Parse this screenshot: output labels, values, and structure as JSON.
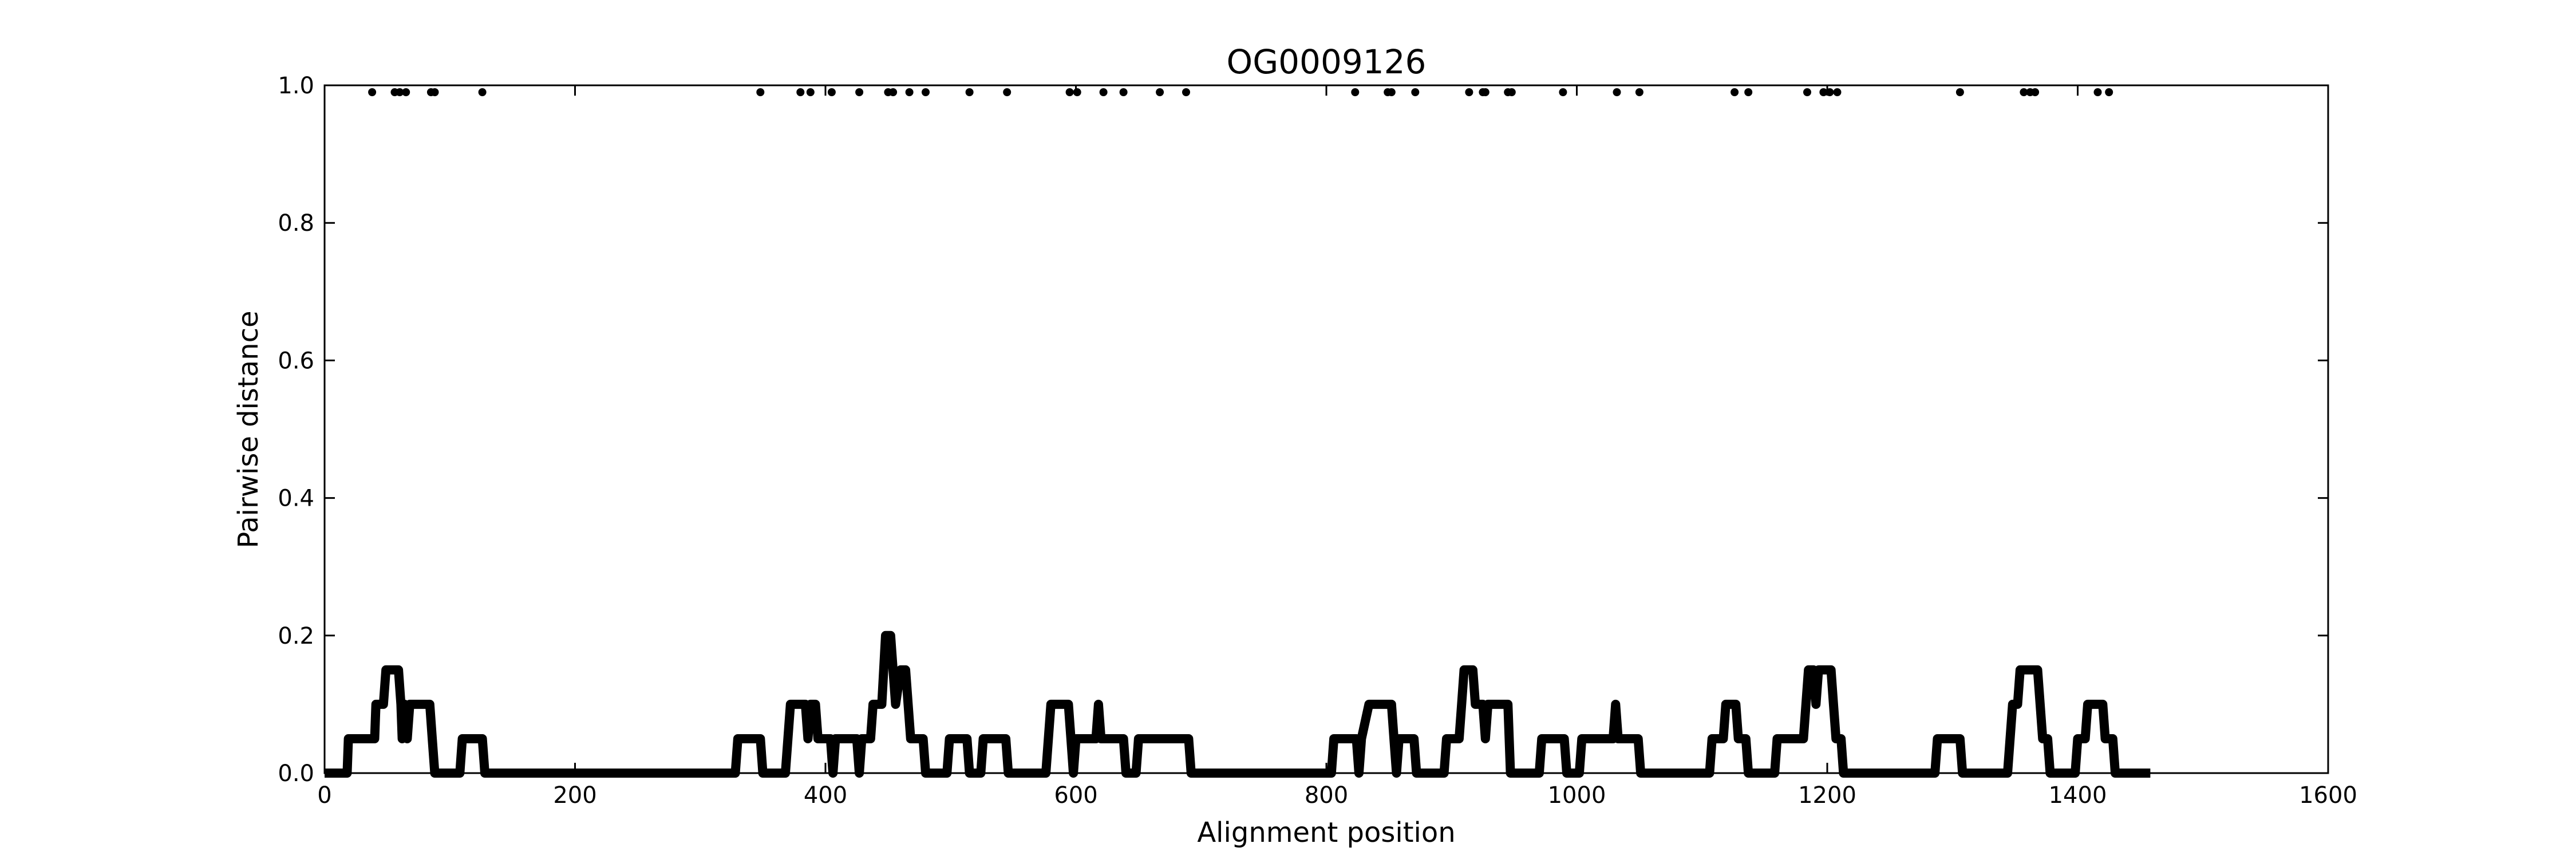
{
  "chart_data": {
    "type": "line",
    "title": "OG0009126",
    "xlabel": "Alignment position",
    "ylabel": "Pairwise distance",
    "xlim": [
      0,
      1600
    ],
    "ylim": [
      0,
      1.0
    ],
    "xticks": [
      0,
      200,
      400,
      600,
      800,
      1000,
      1200,
      1400,
      1600
    ],
    "xtick_labels": [
      "0",
      "200",
      "400",
      "600",
      "800",
      "1000",
      "1200",
      "1400",
      "1600"
    ],
    "yticks": [
      0.0,
      0.2,
      0.4,
      0.6,
      0.8,
      1.0
    ],
    "ytick_labels": [
      "0.0",
      "0.2",
      "0.4",
      "0.6",
      "0.8",
      "1.0"
    ],
    "grid": false,
    "legend": "none",
    "line_color": "#000000",
    "series": [
      {
        "kind": "line",
        "points": [
          [
            0,
            0
          ],
          [
            18,
            0
          ],
          [
            19,
            0.05
          ],
          [
            40,
            0.05
          ],
          [
            41,
            0.1
          ],
          [
            47,
            0.1
          ],
          [
            49,
            0.15
          ],
          [
            59,
            0.15
          ],
          [
            61,
            0.1
          ],
          [
            62,
            0.05
          ],
          [
            64,
            0.1
          ],
          [
            66,
            0.05
          ],
          [
            68,
            0.1
          ],
          [
            84,
            0.1
          ],
          [
            86,
            0.05
          ],
          [
            88,
            0
          ],
          [
            108,
            0
          ],
          [
            110,
            0.05
          ],
          [
            126,
            0.05
          ],
          [
            128,
            0
          ],
          [
            328,
            0
          ],
          [
            330,
            0.05
          ],
          [
            348,
            0.05
          ],
          [
            350,
            0
          ],
          [
            368,
            0
          ],
          [
            370,
            0.05
          ],
          [
            372,
            0.1
          ],
          [
            384,
            0.1
          ],
          [
            386,
            0.05
          ],
          [
            388,
            0.1
          ],
          [
            392,
            0.1
          ],
          [
            394,
            0.05
          ],
          [
            404,
            0.05
          ],
          [
            406,
            0
          ],
          [
            408,
            0.05
          ],
          [
            425,
            0.05
          ],
          [
            427,
            0
          ],
          [
            429,
            0.05
          ],
          [
            436,
            0.05
          ],
          [
            438,
            0.1
          ],
          [
            445,
            0.1
          ],
          [
            448,
            0.2
          ],
          [
            452,
            0.2
          ],
          [
            454,
            0.15
          ],
          [
            456,
            0.1
          ],
          [
            460,
            0.15
          ],
          [
            464,
            0.15
          ],
          [
            466,
            0.1
          ],
          [
            468,
            0.05
          ],
          [
            478,
            0.05
          ],
          [
            480,
            0
          ],
          [
            497,
            0
          ],
          [
            499,
            0.05
          ],
          [
            513,
            0.05
          ],
          [
            515,
            0
          ],
          [
            524,
            0
          ],
          [
            526,
            0.05
          ],
          [
            544,
            0.05
          ],
          [
            546,
            0
          ],
          [
            576,
            0
          ],
          [
            578,
            0.05
          ],
          [
            580,
            0.1
          ],
          [
            594,
            0.1
          ],
          [
            596,
            0.05
          ],
          [
            598,
            0
          ],
          [
            600,
            0.05
          ],
          [
            616,
            0.05
          ],
          [
            618,
            0.1
          ],
          [
            620,
            0.05
          ],
          [
            638,
            0.05
          ],
          [
            640,
            0
          ],
          [
            648,
            0
          ],
          [
            650,
            0.05
          ],
          [
            690,
            0.05
          ],
          [
            692,
            0
          ],
          [
            804,
            0
          ],
          [
            806,
            0.05
          ],
          [
            824,
            0.05
          ],
          [
            826,
            0
          ],
          [
            828,
            0.05
          ],
          [
            834,
            0.1
          ],
          [
            852,
            0.1
          ],
          [
            854,
            0.05
          ],
          [
            856,
            0
          ],
          [
            858,
            0.05
          ],
          [
            870,
            0.05
          ],
          [
            872,
            0
          ],
          [
            894,
            0
          ],
          [
            896,
            0.05
          ],
          [
            906,
            0.05
          ],
          [
            908,
            0.1
          ],
          [
            910,
            0.15
          ],
          [
            917,
            0.15
          ],
          [
            919,
            0.1
          ],
          [
            925,
            0.1
          ],
          [
            927,
            0.05
          ],
          [
            929,
            0.1
          ],
          [
            945,
            0.1
          ],
          [
            947,
            0
          ],
          [
            970,
            0
          ],
          [
            972,
            0.05
          ],
          [
            990,
            0.05
          ],
          [
            992,
            0
          ],
          [
            1002,
            0
          ],
          [
            1004,
            0.05
          ],
          [
            1029,
            0.05
          ],
          [
            1031,
            0.1
          ],
          [
            1033,
            0.05
          ],
          [
            1049,
            0.05
          ],
          [
            1051,
            0
          ],
          [
            1106,
            0
          ],
          [
            1108,
            0.05
          ],
          [
            1117,
            0.05
          ],
          [
            1119,
            0.1
          ],
          [
            1127,
            0.1
          ],
          [
            1129,
            0.05
          ],
          [
            1135,
            0.05
          ],
          [
            1137,
            0
          ],
          [
            1158,
            0
          ],
          [
            1160,
            0.05
          ],
          [
            1181,
            0.05
          ],
          [
            1183,
            0.1
          ],
          [
            1185,
            0.15
          ],
          [
            1189,
            0.15
          ],
          [
            1191,
            0.1
          ],
          [
            1193,
            0.15
          ],
          [
            1203,
            0.15
          ],
          [
            1205,
            0.1
          ],
          [
            1207,
            0.05
          ],
          [
            1211,
            0.05
          ],
          [
            1213,
            0
          ],
          [
            1286,
            0
          ],
          [
            1288,
            0.05
          ],
          [
            1306,
            0.05
          ],
          [
            1308,
            0
          ],
          [
            1344,
            0
          ],
          [
            1346,
            0.05
          ],
          [
            1348,
            0.1
          ],
          [
            1352,
            0.1
          ],
          [
            1354,
            0.15
          ],
          [
            1368,
            0.15
          ],
          [
            1370,
            0.1
          ],
          [
            1372,
            0.05
          ],
          [
            1376,
            0.05
          ],
          [
            1378,
            0
          ],
          [
            1398,
            0
          ],
          [
            1400,
            0.05
          ],
          [
            1406,
            0.05
          ],
          [
            1408,
            0.1
          ],
          [
            1420,
            0.1
          ],
          [
            1422,
            0.05
          ],
          [
            1428,
            0.05
          ],
          [
            1430,
            0
          ],
          [
            1458,
            0
          ]
        ]
      },
      {
        "kind": "scatter",
        "y": 0.99,
        "x": [
          38,
          56,
          60,
          65,
          85,
          88,
          126,
          348,
          380,
          388,
          405,
          427,
          450,
          454,
          467,
          480,
          515,
          545,
          595,
          601,
          622,
          638,
          667,
          688,
          823,
          849,
          852,
          871,
          914,
          925,
          927,
          945,
          948,
          989,
          1032,
          1050,
          1126,
          1137,
          1184,
          1197,
          1202,
          1208,
          1306,
          1357,
          1362,
          1366,
          1416,
          1425
        ]
      }
    ]
  }
}
